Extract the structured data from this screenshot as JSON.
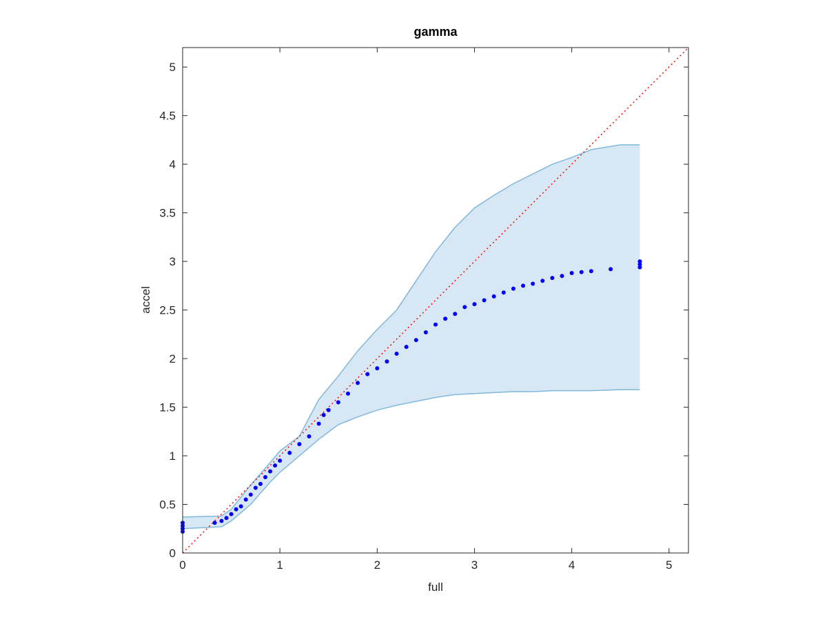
{
  "chart_data": {
    "type": "scatter",
    "title": "gamma",
    "x_label": "full",
    "y_label": "accel",
    "xlim": [
      0,
      5.2
    ],
    "ylim": [
      0,
      5.2
    ],
    "xticks": [
      0,
      1,
      2,
      3,
      4,
      5
    ],
    "yticks": [
      0,
      0.5,
      1,
      1.5,
      2,
      2.5,
      3,
      3.5,
      4,
      4.5,
      5
    ],
    "grid": false,
    "points": {
      "color": "#0000ff",
      "x": [
        0,
        0,
        0,
        0,
        0.33,
        0.4,
        0.45,
        0.5,
        0.55,
        0.6,
        0.65,
        0.7,
        0.75,
        0.8,
        0.85,
        0.9,
        0.95,
        1.0,
        1.1,
        1.2,
        1.3,
        1.4,
        1.45,
        1.5,
        1.6,
        1.7,
        1.8,
        1.9,
        2.0,
        2.1,
        2.2,
        2.3,
        2.4,
        2.5,
        2.6,
        2.7,
        2.8,
        2.9,
        3.0,
        3.1,
        3.2,
        3.3,
        3.4,
        3.5,
        3.6,
        3.7,
        3.8,
        3.9,
        4.0,
        4.1,
        4.2,
        4.4,
        4.7,
        4.7,
        4.7
      ],
      "y": [
        0.22,
        0.25,
        0.28,
        0.31,
        0.31,
        0.33,
        0.36,
        0.4,
        0.45,
        0.48,
        0.55,
        0.6,
        0.67,
        0.71,
        0.78,
        0.84,
        0.9,
        0.95,
        1.03,
        1.12,
        1.2,
        1.33,
        1.42,
        1.47,
        1.55,
        1.64,
        1.75,
        1.84,
        1.9,
        1.97,
        2.05,
        2.12,
        2.19,
        2.27,
        2.35,
        2.41,
        2.46,
        2.53,
        2.56,
        2.6,
        2.64,
        2.68,
        2.72,
        2.75,
        2.77,
        2.8,
        2.83,
        2.85,
        2.88,
        2.89,
        2.9,
        2.92,
        2.94,
        2.97,
        3.0
      ]
    },
    "band": {
      "color": "#7fb8dc",
      "fill": "#d7e7f4",
      "x": [
        0,
        0.4,
        0.5,
        0.7,
        0.9,
        1.0,
        1.2,
        1.4,
        1.6,
        1.8,
        2.0,
        2.2,
        2.4,
        2.6,
        2.8,
        3.0,
        3.2,
        3.4,
        3.6,
        3.8,
        4.0,
        4.2,
        4.5,
        4.7
      ],
      "upper": [
        0.37,
        0.38,
        0.45,
        0.7,
        0.93,
        1.05,
        1.2,
        1.58,
        1.82,
        2.08,
        2.3,
        2.5,
        2.8,
        3.1,
        3.35,
        3.55,
        3.68,
        3.8,
        3.9,
        4.0,
        4.07,
        4.15,
        4.2,
        4.2
      ],
      "lower": [
        0.25,
        0.27,
        0.33,
        0.5,
        0.73,
        0.83,
        1.0,
        1.17,
        1.32,
        1.4,
        1.47,
        1.52,
        1.56,
        1.6,
        1.63,
        1.64,
        1.65,
        1.66,
        1.66,
        1.67,
        1.67,
        1.67,
        1.68,
        1.68
      ]
    },
    "reference_line": {
      "color": "#ff0000",
      "x": [
        0,
        5.2
      ],
      "y": [
        0,
        5.2
      ]
    }
  }
}
